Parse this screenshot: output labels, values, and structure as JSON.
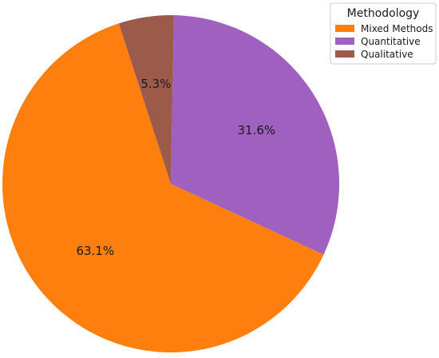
{
  "chart_data": {
    "type": "pie",
    "title": "",
    "legend": {
      "title": "Methodology",
      "placement": "top-right"
    },
    "start_angle_deg": 108,
    "direction": "counterclockwise",
    "slices": [
      {
        "label": "Mixed Methods",
        "value": 63.1,
        "display": "63.1%",
        "color": "#ff7f0e"
      },
      {
        "label": "Quantitative",
        "value": 31.6,
        "display": "31.6%",
        "color": "#a060c0"
      },
      {
        "label": "Qualitative",
        "value": 5.3,
        "display": "5.3%",
        "color": "#9c5a4a"
      }
    ]
  }
}
